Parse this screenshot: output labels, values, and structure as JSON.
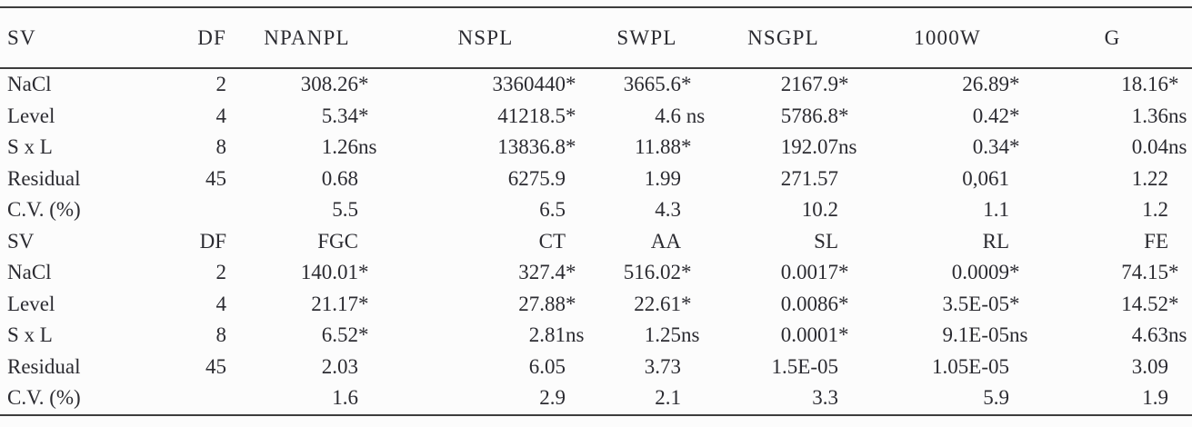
{
  "page": {
    "background": "#fcfcfc",
    "text_color": "#2b2b31",
    "rule_color": "#3d3d3d"
  },
  "table": {
    "sections": [
      {
        "header": [
          "SV",
          "DF",
          "NPANPL",
          "NSPL",
          "SWPL",
          "NSGPL",
          "1000W",
          "G"
        ],
        "rows": [
          [
            "NaCl",
            "2",
            "308.26*",
            "3360440*",
            "3665.6*",
            "2167.9*",
            "26.89*",
            "18.16*"
          ],
          [
            "Level",
            "4",
            "5.34*",
            "41218.5*",
            "4.6 ns",
            "5786.8*",
            "0.42*",
            "1.36ns"
          ],
          [
            "S x L",
            "8",
            "1.26ns",
            "13836.8*",
            "11.88*",
            "192.07ns",
            "0.34*",
            "0.04ns"
          ],
          [
            "Residual",
            "45",
            "0.68",
            "6275.9",
            "1.99",
            "271.57",
            "0,061",
            "1.22"
          ],
          [
            "C.V. (%)",
            "",
            "5.5",
            "6.5",
            "4.3",
            "10.2",
            "1.1",
            "1.2"
          ]
        ]
      },
      {
        "header": [
          "SV",
          "DF",
          "FGC",
          "CT",
          "AA",
          "SL",
          "RL",
          "FE"
        ],
        "rows": [
          [
            "NaCl",
            "2",
            "140.01*",
            "327.4*",
            "516.02*",
            "0.0017*",
            "0.0009*",
            "74.15*"
          ],
          [
            "Level",
            "4",
            "21.17*",
            "27.88*",
            "22.61*",
            "0.0086*",
            "3.5E-05*",
            "14.52*"
          ],
          [
            "S x L",
            "8",
            "6.52*",
            "2.81ns",
            "1.25ns",
            "0.0001*",
            "9.1E-05ns",
            "4.63ns"
          ],
          [
            "Residual",
            "45",
            "2.03",
            "6.05",
            "3.73",
            "1.5E-05",
            "1.05E-05",
            "3.09"
          ],
          [
            "C.V. (%)",
            "",
            "1.6",
            "2.9",
            "2.1",
            "3.3",
            "5.9",
            "1.9"
          ]
        ]
      }
    ]
  }
}
